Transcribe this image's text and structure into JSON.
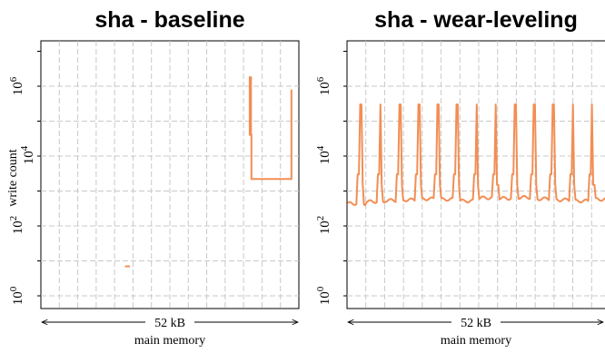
{
  "figure": {
    "line_color": "#f28e54",
    "grid_color": "#c8c8c8"
  },
  "chart_data": [
    {
      "type": "line",
      "title": "sha - baseline",
      "ylabel": "write count",
      "xlabel": "main memory",
      "span_label": "52 kB",
      "yscale": "log",
      "ylim": [
        0.5,
        20000000
      ],
      "xlim": [
        0,
        52
      ],
      "y_ticks": [
        {
          "base": "10",
          "exp": "0",
          "value": 1
        },
        {
          "base": "10",
          "exp": "2",
          "value": 100
        },
        {
          "base": "10",
          "exp": "4",
          "value": 10000
        },
        {
          "base": "10",
          "exp": "6",
          "value": 1000000
        }
      ],
      "grid": true,
      "segments": [
        {
          "x": [
            16.95,
            17.95
          ],
          "y": [
            7,
            7
          ]
        },
        {
          "x": [
            42.0,
            42.1,
            42.1,
            42.35,
            42.35,
            42.45,
            42.45,
            50.5,
            50.5
          ],
          "y": [
            40000,
            40000,
            1800000,
            1800000,
            40000,
            40000,
            2200,
            2200,
            800000
          ]
        }
      ]
    },
    {
      "type": "line",
      "title": "sha - wear-leveling",
      "ylabel": "",
      "xlabel": "main memory",
      "span_label": "52 kB",
      "yscale": "log",
      "ylim": [
        0.5,
        20000000
      ],
      "xlim": [
        0,
        52
      ],
      "y_ticks": [
        {
          "base": "10",
          "exp": "0",
          "value": 1
        },
        {
          "base": "10",
          "exp": "2",
          "value": 100
        },
        {
          "base": "10",
          "exp": "4",
          "value": 10000
        },
        {
          "base": "10",
          "exp": "6",
          "value": 1000000
        }
      ],
      "grid": true,
      "peak_x": [
        2.8,
        6.6,
        10.4,
        14.2,
        18.0,
        21.8,
        25.6,
        29.4,
        33.2,
        37.0,
        40.8,
        44.6,
        48.4
      ],
      "peak_y": 300000,
      "shoulder_y": 3000,
      "baseline_y": [
        440,
        500,
        540,
        560,
        600,
        580,
        520,
        640,
        620,
        660,
        600,
        560,
        520,
        580
      ]
    }
  ]
}
